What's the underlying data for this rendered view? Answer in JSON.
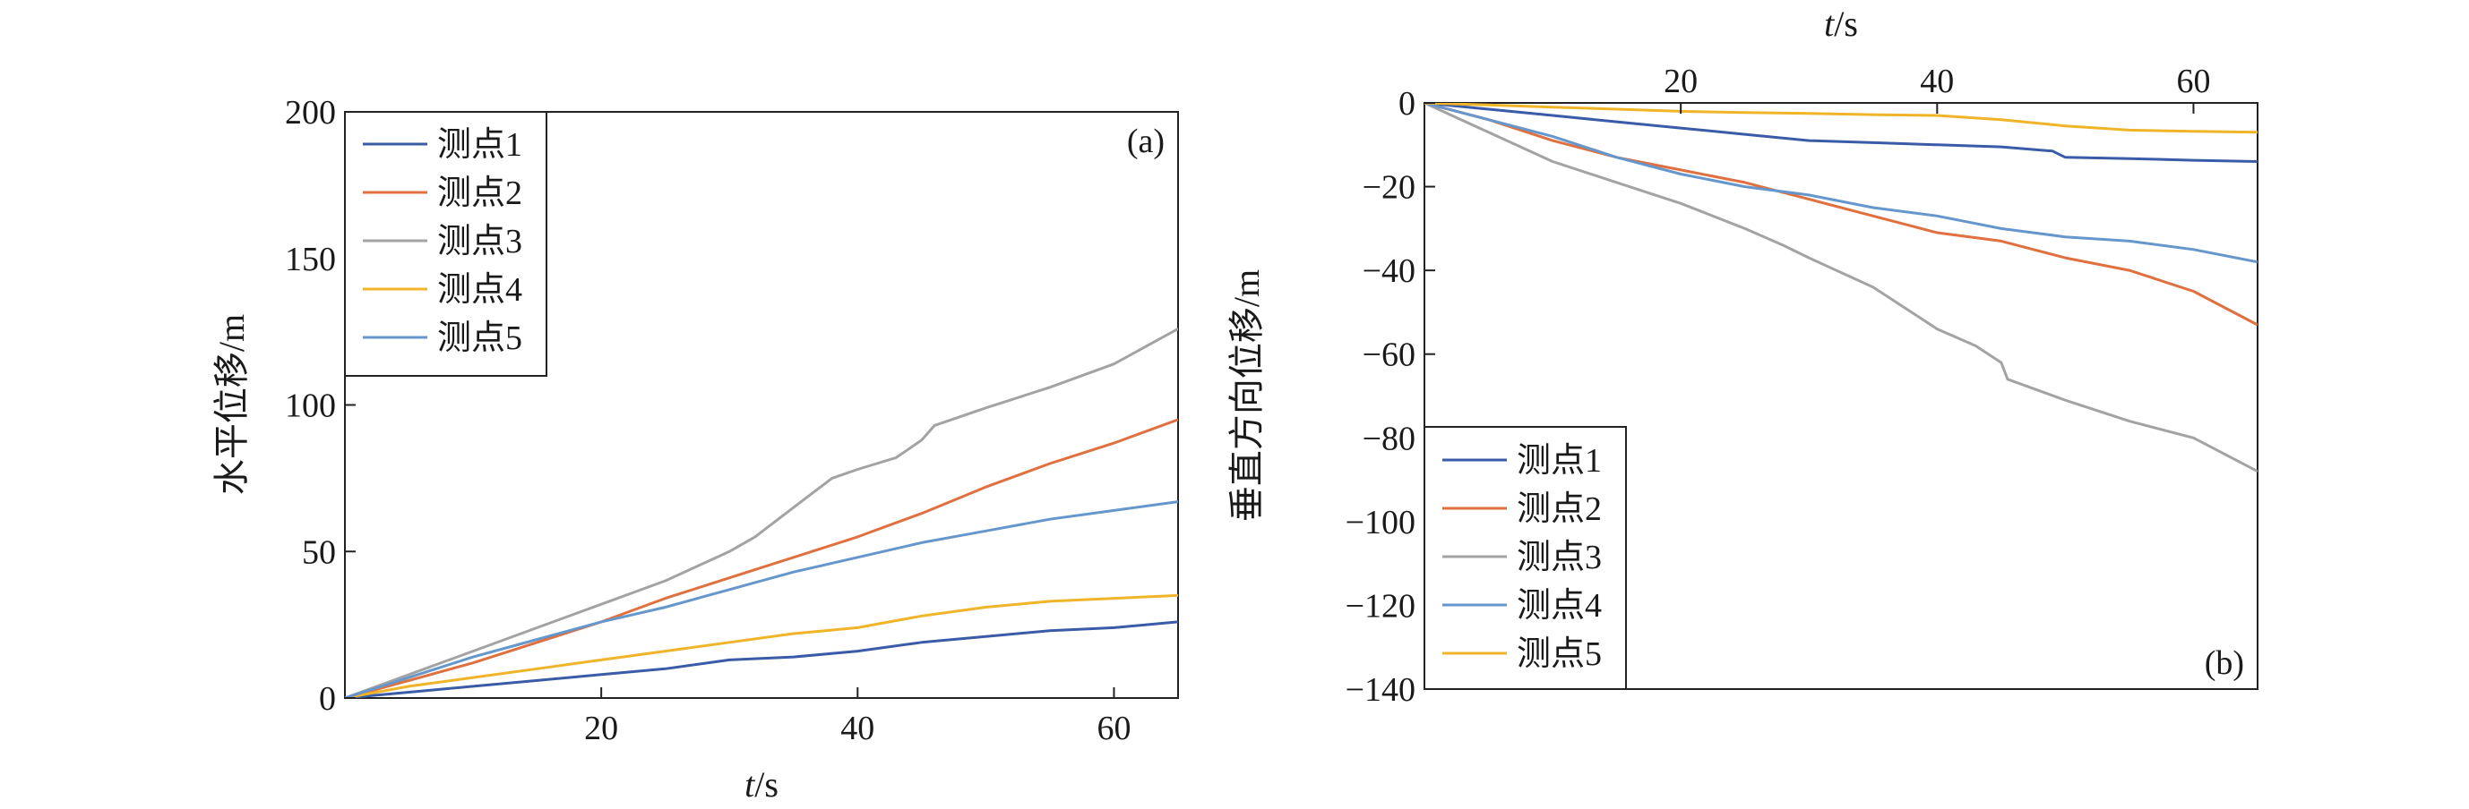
{
  "chart_data": [
    {
      "type": "line",
      "panel_label": "(a)",
      "xlabel": "t/s",
      "ylabel": "水平位移/m",
      "xlim": [
        0,
        65
      ],
      "ylim": [
        0,
        200
      ],
      "x_ticks": [
        "20",
        "40",
        "60"
      ],
      "y_ticks": [
        "0",
        "50",
        "100",
        "150",
        "200"
      ],
      "x_tick_values": [
        20,
        40,
        60
      ],
      "y_tick_values": [
        0,
        50,
        100,
        150,
        200
      ],
      "legend_position": "top-left",
      "grid": false,
      "series": [
        {
          "name": "测点1",
          "color": "#3a5ba8",
          "x": [
            0,
            5,
            10,
            15,
            20,
            25,
            30,
            35,
            40,
            45,
            50,
            55,
            60,
            65
          ],
          "values": [
            0,
            2,
            4,
            6,
            8,
            10,
            13,
            14,
            16,
            19,
            21,
            23,
            24,
            26
          ]
        },
        {
          "name": "测点2",
          "color": "#e0703f",
          "x": [
            0,
            5,
            10,
            15,
            20,
            25,
            30,
            35,
            40,
            45,
            50,
            55,
            60,
            65
          ],
          "values": [
            0,
            6,
            12,
            19,
            26,
            34,
            41,
            48,
            55,
            63,
            72,
            80,
            87,
            95
          ]
        },
        {
          "name": "测点3",
          "color": "#a3a3a3",
          "x": [
            0,
            5,
            10,
            15,
            20,
            25,
            30,
            32,
            35,
            38,
            40,
            43,
            45,
            46,
            50,
            55,
            60,
            65
          ],
          "values": [
            0,
            8,
            16,
            24,
            32,
            40,
            50,
            55,
            65,
            75,
            78,
            82,
            88,
            93,
            99,
            106,
            114,
            126
          ]
        },
        {
          "name": "测点4",
          "color": "#f0b429",
          "x": [
            0,
            5,
            10,
            15,
            20,
            25,
            30,
            35,
            40,
            45,
            50,
            55,
            60,
            65
          ],
          "values": [
            0,
            4,
            7,
            10,
            13,
            16,
            19,
            22,
            24,
            28,
            31,
            33,
            34,
            35
          ]
        },
        {
          "name": "测点5",
          "color": "#6697cc",
          "x": [
            0,
            5,
            10,
            15,
            20,
            25,
            30,
            35,
            40,
            45,
            50,
            55,
            60,
            65
          ],
          "values": [
            0,
            7,
            14,
            20,
            26,
            31,
            37,
            43,
            48,
            53,
            57,
            61,
            64,
            67
          ]
        }
      ]
    },
    {
      "type": "line",
      "panel_label": "(b)",
      "xlabel": "t/s",
      "ylabel": "垂直方向位移/m",
      "xlim": [
        0,
        65
      ],
      "ylim": [
        -140,
        0
      ],
      "x_ticks": [
        "20",
        "40",
        "60"
      ],
      "y_ticks": [
        "0",
        "−20",
        "−40",
        "−60",
        "−80",
        "−100",
        "−120",
        "−140"
      ],
      "x_tick_values": [
        20,
        40,
        60
      ],
      "y_tick_values": [
        0,
        -20,
        -40,
        -60,
        -80,
        -100,
        -120,
        -140
      ],
      "legend_position": "bottom-left",
      "grid": false,
      "series": [
        {
          "name": "测点1",
          "color": "#3a5ba8",
          "x": [
            0,
            5,
            10,
            15,
            20,
            25,
            30,
            35,
            40,
            45,
            49,
            50,
            55,
            60,
            65
          ],
          "values": [
            0,
            -1.5,
            -3,
            -4.5,
            -6,
            -7.5,
            -9,
            -9.5,
            -10,
            -10.5,
            -11.5,
            -13,
            -13.3,
            -13.7,
            -14
          ]
        },
        {
          "name": "测点2",
          "color": "#e0703f",
          "x": [
            0,
            5,
            10,
            15,
            20,
            25,
            30,
            35,
            40,
            45,
            50,
            55,
            60,
            65
          ],
          "values": [
            0,
            -4,
            -9,
            -13,
            -16,
            -19,
            -23,
            -27,
            -31,
            -33,
            -37,
            -40,
            -45,
            -53
          ]
        },
        {
          "name": "测点3",
          "color": "#a3a3a3",
          "x": [
            0,
            5,
            10,
            15,
            20,
            25,
            28,
            30,
            35,
            38,
            40,
            43,
            45,
            45.5,
            50,
            55,
            60,
            65
          ],
          "values": [
            0,
            -7,
            -14,
            -19,
            -24,
            -30,
            -34,
            -37,
            -44,
            -50,
            -54,
            -58,
            -62,
            -66,
            -71,
            -76,
            -80,
            -88
          ]
        },
        {
          "name": "测点4",
          "color": "#6697cc",
          "x": [
            0,
            5,
            10,
            15,
            20,
            25,
            30,
            35,
            40,
            45,
            50,
            55,
            60,
            65
          ],
          "values": [
            0,
            -4,
            -8,
            -13,
            -17,
            -20,
            -22,
            -25,
            -27,
            -30,
            -32,
            -33,
            -35,
            -38
          ]
        },
        {
          "name": "测点5",
          "color": "#f0b429",
          "x": [
            0,
            5,
            10,
            15,
            20,
            25,
            30,
            35,
            40,
            45,
            50,
            55,
            60,
            65
          ],
          "values": [
            0,
            -0.5,
            -1,
            -1.5,
            -2,
            -2.3,
            -2.5,
            -2.8,
            -3,
            -4,
            -5.5,
            -6.5,
            -6.8,
            -7
          ]
        }
      ]
    }
  ]
}
